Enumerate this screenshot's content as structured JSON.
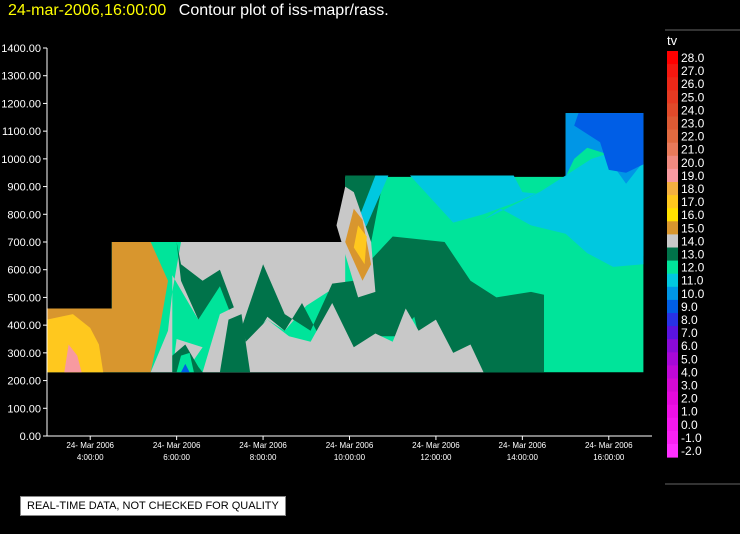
{
  "header": {
    "timestamp": "24-mar-2006,16:00:00",
    "title": "Contour plot of iss-mapr/rass."
  },
  "notice": "REAL-TIME DATA, NOT CHECKED FOR QUALITY",
  "chart_data": {
    "type": "heatmap",
    "ylim": [
      0,
      1400
    ],
    "y_ticks": [
      "0.00",
      "100.00",
      "200.00",
      "300.00",
      "400.00",
      "500.00",
      "600.00",
      "700.00",
      "800.00",
      "900.00",
      "1000.00",
      "1100.00",
      "1200.00",
      "1300.00",
      "1400.00"
    ],
    "x_range_hours": [
      3,
      17
    ],
    "x_ticks": [
      {
        "hour": 4,
        "date": "24- Mar 2006",
        "time": "4:00:00"
      },
      {
        "hour": 6,
        "date": "24- Mar 2006",
        "time": "6:00:00"
      },
      {
        "hour": 8,
        "date": "24- Mar 2006",
        "time": "8:00:00"
      },
      {
        "hour": 10,
        "date": "24- Mar 2006",
        "time": "10:00:00"
      },
      {
        "hour": 12,
        "date": "24- Mar 2006",
        "time": "12:00:00"
      },
      {
        "hour": 14,
        "date": "24- Mar 2006",
        "time": "14:00:00"
      },
      {
        "hour": 16,
        "date": "24- Mar 2006",
        "time": "16:00:00"
      }
    ],
    "colorbar": {
      "label": "tv",
      "levels": [
        {
          "label": "28.0",
          "color": "#ff0000"
        },
        {
          "label": "27.0",
          "color": "#f41810"
        },
        {
          "label": "26.0",
          "color": "#ec2818"
        },
        {
          "label": "25.0",
          "color": "#e63a22"
        },
        {
          "label": "24.0",
          "color": "#e04a2a"
        },
        {
          "label": "23.0",
          "color": "#dc5a34"
        },
        {
          "label": "22.0",
          "color": "#e06a40"
        },
        {
          "label": "21.0",
          "color": "#e87a5a"
        },
        {
          "label": "20.0",
          "color": "#f08a80"
        },
        {
          "label": "19.0",
          "color": "#f89aa0"
        },
        {
          "label": "18.0",
          "color": "#f4b040"
        },
        {
          "label": "17.0",
          "color": "#ffc81e"
        },
        {
          "label": "16.0",
          "color": "#ffe000"
        },
        {
          "label": "15.0",
          "color": "#d8962e"
        },
        {
          "label": "14.0",
          "color": "#c8c8c8"
        },
        {
          "label": "13.0",
          "color": "#00734a"
        },
        {
          "label": "12.0",
          "color": "#00e49a"
        },
        {
          "label": "11.0",
          "color": "#00c8e0"
        },
        {
          "label": "10.0",
          "color": "#0096e6"
        },
        {
          "label": "9.0",
          "color": "#005ee6"
        },
        {
          "label": "8.0",
          "color": "#2832e6"
        },
        {
          "label": "7.0",
          "color": "#5a14e0"
        },
        {
          "label": "6.0",
          "color": "#8a0ad8"
        },
        {
          "label": "5.0",
          "color": "#a808d8"
        },
        {
          "label": "4.0",
          "color": "#c008d8"
        },
        {
          "label": "3.0",
          "color": "#d40ad4"
        },
        {
          "label": "2.0",
          "color": "#e40ade"
        },
        {
          "label": "1.0",
          "color": "#ee10e6"
        },
        {
          "label": "0.0",
          "color": "#f418ee"
        },
        {
          "label": "-1.0",
          "color": "#f822f2"
        },
        {
          "label": "-2.0",
          "color": "#ff30ff"
        }
      ]
    },
    "regions": [
      {
        "name": "ceiling-step-1",
        "color": "#00e49a",
        "points": [
          [
            3.0,
            230
          ],
          [
            3.0,
            460
          ],
          [
            4.5,
            460
          ],
          [
            4.5,
            700
          ],
          [
            9.9,
            700
          ],
          [
            9.9,
            935
          ],
          [
            15.0,
            935
          ],
          [
            15.0,
            1165
          ],
          [
            16.8,
            1165
          ],
          [
            16.8,
            230
          ]
        ]
      },
      {
        "name": "orange-low-left",
        "color": "#d8962e",
        "points": [
          [
            3.0,
            230
          ],
          [
            3.0,
            460
          ],
          [
            4.5,
            460
          ],
          [
            4.5,
            700
          ],
          [
            5.4,
            700
          ],
          [
            5.8,
            560
          ],
          [
            5.6,
            380
          ],
          [
            5.4,
            230
          ]
        ]
      },
      {
        "name": "yellow-warm",
        "color": "#ffc81e",
        "points": [
          [
            3.0,
            230
          ],
          [
            3.0,
            420
          ],
          [
            3.6,
            440
          ],
          [
            4.0,
            390
          ],
          [
            4.2,
            330
          ],
          [
            4.3,
            230
          ]
        ]
      },
      {
        "name": "grey-band",
        "color": "#c8c8c8",
        "points": [
          [
            5.4,
            230
          ],
          [
            5.8,
            380
          ],
          [
            5.9,
            520
          ],
          [
            6.1,
            700
          ],
          [
            9.9,
            700
          ],
          [
            9.9,
            520
          ],
          [
            9.5,
            520
          ],
          [
            9.0,
            470
          ],
          [
            8.5,
            380
          ],
          [
            8.1,
            420
          ],
          [
            7.6,
            350
          ],
          [
            7.0,
            560
          ],
          [
            6.5,
            420
          ],
          [
            5.9,
            580
          ],
          [
            5.9,
            230
          ]
        ]
      },
      {
        "name": "green-13",
        "color": "#00734a",
        "points": [
          [
            6.0,
            700
          ],
          [
            6.1,
            620
          ],
          [
            6.6,
            560
          ],
          [
            7.0,
            600
          ],
          [
            7.5,
            390
          ],
          [
            8.0,
            620
          ],
          [
            8.5,
            440
          ],
          [
            9.1,
            380
          ],
          [
            9.6,
            550
          ],
          [
            10.1,
            560
          ],
          [
            10.5,
            700
          ],
          [
            9.9,
            700
          ],
          [
            9.9,
            940
          ],
          [
            10.8,
            940
          ],
          [
            10.4,
            620
          ],
          [
            11.0,
            720
          ],
          [
            12.2,
            700
          ],
          [
            12.8,
            560
          ],
          [
            13.4,
            500
          ],
          [
            14.2,
            520
          ],
          [
            14.5,
            510
          ],
          [
            14.5,
            230
          ],
          [
            11.8,
            230
          ],
          [
            11.5,
            430
          ],
          [
            11.1,
            360
          ],
          [
            10.6,
            360
          ],
          [
            10.0,
            250
          ],
          [
            9.4,
            330
          ],
          [
            8.9,
            480
          ],
          [
            8.5,
            380
          ],
          [
            8.1,
            430
          ],
          [
            7.6,
            300
          ],
          [
            7.0,
            540
          ],
          [
            6.5,
            420
          ],
          [
            6.1,
            560
          ]
        ]
      },
      {
        "name": "grey-mid",
        "color": "#c8c8c8",
        "points": [
          [
            6.6,
            230
          ],
          [
            7.0,
            440
          ],
          [
            7.4,
            470
          ],
          [
            7.6,
            340
          ],
          [
            8.1,
            420
          ],
          [
            8.6,
            360
          ],
          [
            9.1,
            340
          ],
          [
            9.6,
            480
          ],
          [
            10.1,
            320
          ],
          [
            10.6,
            370
          ],
          [
            11.0,
            340
          ],
          [
            11.3,
            460
          ],
          [
            11.6,
            380
          ],
          [
            12.0,
            420
          ],
          [
            12.4,
            300
          ],
          [
            12.8,
            330
          ],
          [
            13.1,
            230
          ]
        ]
      },
      {
        "name": "green-13-hill",
        "color": "#00734a",
        "points": [
          [
            7.0,
            230
          ],
          [
            7.2,
            420
          ],
          [
            7.5,
            440
          ],
          [
            7.7,
            230
          ]
        ]
      },
      {
        "name": "grey-cell-2",
        "color": "#c8c8c8",
        "points": [
          [
            5.9,
            230
          ],
          [
            6.0,
            350
          ],
          [
            6.6,
            320
          ],
          [
            6.2,
            230
          ]
        ]
      },
      {
        "name": "green-13-cell",
        "color": "#00734a",
        "points": [
          [
            5.9,
            230
          ],
          [
            5.9,
            290
          ],
          [
            6.2,
            330
          ],
          [
            6.5,
            250
          ],
          [
            6.6,
            230
          ]
        ]
      },
      {
        "name": "teal-cell",
        "color": "#00e49a",
        "points": [
          [
            6.0,
            230
          ],
          [
            6.1,
            290
          ],
          [
            6.3,
            300
          ],
          [
            6.4,
            230
          ]
        ]
      },
      {
        "name": "blue-cell",
        "color": "#005ee6",
        "points": [
          [
            6.1,
            230
          ],
          [
            6.2,
            260
          ],
          [
            6.3,
            230
          ]
        ]
      },
      {
        "name": "teal-upper",
        "color": "#00c8e0",
        "points": [
          [
            10.0,
            700
          ],
          [
            10.4,
            760
          ],
          [
            10.9,
            940
          ],
          [
            13.8,
            940
          ],
          [
            14.0,
            880
          ],
          [
            14.6,
            870
          ],
          [
            15.2,
            780
          ],
          [
            15.7,
            670
          ],
          [
            16.3,
            640
          ],
          [
            16.8,
            650
          ],
          [
            16.8,
            1060
          ],
          [
            15.6,
            1000
          ],
          [
            15.0,
            940
          ],
          [
            14.4,
            880
          ],
          [
            13.8,
            840
          ],
          [
            13.1,
            800
          ],
          [
            12.4,
            770
          ],
          [
            11.4,
            940
          ],
          [
            10.6,
            940
          ]
        ]
      },
      {
        "name": "teal-upper-2",
        "color": "#00c8e0",
        "points": [
          [
            13.1,
            780
          ],
          [
            13.5,
            820
          ],
          [
            14.2,
            760
          ],
          [
            15.0,
            730
          ],
          [
            15.5,
            660
          ],
          [
            16.1,
            610
          ],
          [
            16.8,
            620
          ],
          [
            16.8,
            1000
          ],
          [
            15.4,
            940
          ],
          [
            14.4,
            880
          ]
        ]
      },
      {
        "name": "blue-upper",
        "color": "#0096e6",
        "points": [
          [
            15.0,
            935
          ],
          [
            15.0,
            1165
          ],
          [
            16.8,
            1165
          ],
          [
            16.8,
            990
          ],
          [
            16.4,
            910
          ],
          [
            15.9,
            1020
          ],
          [
            15.5,
            1040
          ],
          [
            15.2,
            1000
          ]
        ]
      },
      {
        "name": "dark-blue-top",
        "color": "#005ee6",
        "points": [
          [
            15.3,
            1165
          ],
          [
            15.2,
            1120
          ],
          [
            15.8,
            1060
          ],
          [
            16.0,
            960
          ],
          [
            16.4,
            950
          ],
          [
            16.8,
            980
          ],
          [
            16.8,
            1165
          ]
        ]
      },
      {
        "name": "grey-peak",
        "color": "#c8c8c8",
        "points": [
          [
            9.9,
            900
          ],
          [
            9.7,
            760
          ],
          [
            10.2,
            500
          ],
          [
            10.6,
            520
          ],
          [
            10.5,
            700
          ],
          [
            10.1,
            880
          ]
        ]
      },
      {
        "name": "orange-peak",
        "color": "#d8962e",
        "points": [
          [
            10.1,
            820
          ],
          [
            9.9,
            700
          ],
          [
            10.3,
            560
          ],
          [
            10.5,
            620
          ],
          [
            10.3,
            780
          ]
        ]
      },
      {
        "name": "yellow-peak",
        "color": "#ffc81e",
        "points": [
          [
            10.2,
            760
          ],
          [
            10.1,
            680
          ],
          [
            10.35,
            620
          ],
          [
            10.4,
            720
          ]
        ]
      },
      {
        "name": "pink-low-left",
        "color": "#f89aa0",
        "points": [
          [
            3.4,
            230
          ],
          [
            3.5,
            330
          ],
          [
            3.7,
            290
          ],
          [
            3.8,
            230
          ]
        ]
      }
    ]
  }
}
